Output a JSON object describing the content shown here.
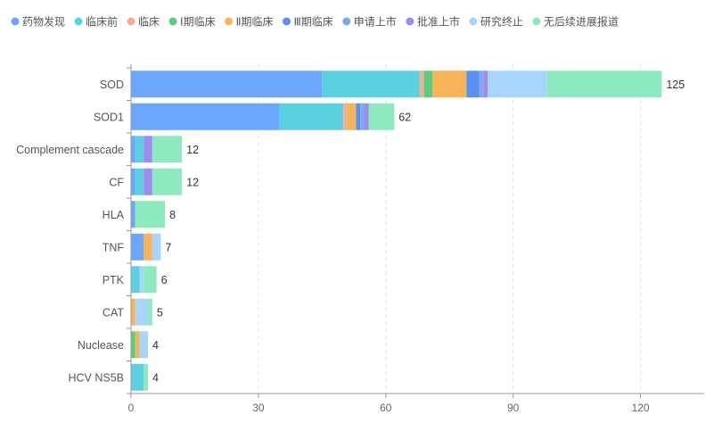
{
  "chart_data": {
    "type": "bar",
    "orientation": "horizontal",
    "stacked": true,
    "categories": [
      "SOD",
      "SOD1",
      "Complement cascade",
      "CF",
      "HLA",
      "TNF",
      "PTK",
      "CAT",
      "Nuclease",
      "HCV NS5B"
    ],
    "totals": [
      125,
      62,
      12,
      12,
      8,
      7,
      6,
      5,
      4,
      4
    ],
    "x_ticks": [
      "0",
      "30",
      "60",
      "90",
      "120"
    ],
    "xlim": [
      0,
      135
    ],
    "grid": "vertical-dashed",
    "legend_position": "top-left",
    "series": [
      {
        "name": "药物发现",
        "color": "#6ba6ff",
        "values": [
          45,
          35,
          1,
          1,
          1,
          3,
          0,
          0,
          0,
          0
        ]
      },
      {
        "name": "临床前",
        "color": "#5bd0df",
        "values": [
          23,
          15,
          2,
          2,
          0,
          0,
          2,
          0,
          0,
          3
        ]
      },
      {
        "name": "临床",
        "color": "#f6ab93",
        "values": [
          1,
          1,
          0,
          0,
          0,
          0,
          0,
          0,
          0,
          0
        ]
      },
      {
        "name": "Ⅰ期临床",
        "color": "#58cd7d",
        "values": [
          2,
          0,
          0,
          0,
          0,
          0,
          0,
          0,
          1,
          0
        ]
      },
      {
        "name": "Ⅱ期临床",
        "color": "#f7b457",
        "values": [
          8,
          2,
          0,
          0,
          0,
          2,
          0,
          1,
          1,
          0
        ]
      },
      {
        "name": "Ⅲ期临床",
        "color": "#5b8ff0",
        "values": [
          3,
          1,
          0,
          0,
          0,
          0,
          0,
          0,
          0,
          0
        ]
      },
      {
        "name": "申请上市",
        "color": "#7fa8f0",
        "values": [
          1,
          1,
          0,
          0,
          0,
          0,
          0,
          0,
          0,
          0
        ]
      },
      {
        "name": "批准上市",
        "color": "#9d8cef",
        "values": [
          1,
          1,
          2,
          2,
          0,
          0,
          0,
          0,
          0,
          0
        ]
      },
      {
        "name": "研究终止",
        "color": "#a8d5fb",
        "values": [
          14,
          0,
          0,
          0,
          0,
          2,
          1,
          3,
          2,
          0
        ]
      },
      {
        "name": "无后续进展报道",
        "color": "#8deabf",
        "values": [
          27,
          6,
          7,
          7,
          7,
          0,
          3,
          1,
          0,
          1
        ]
      }
    ]
  }
}
